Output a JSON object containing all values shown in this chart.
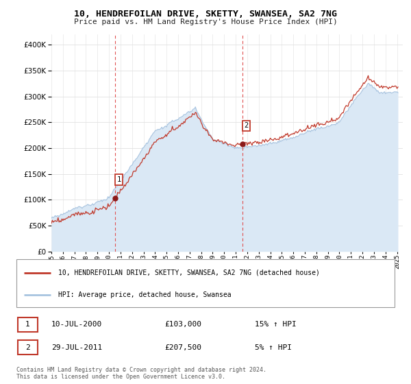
{
  "title": "10, HENDREFOILAN DRIVE, SKETTY, SWANSEA, SA2 7NG",
  "subtitle": "Price paid vs. HM Land Registry's House Price Index (HPI)",
  "legend_line1": "10, HENDREFOILAN DRIVE, SKETTY, SWANSEA, SA2 7NG (detached house)",
  "legend_line2": "HPI: Average price, detached house, Swansea",
  "annotation1_date": "10-JUL-2000",
  "annotation1_price": "£103,000",
  "annotation1_hpi": "15% ↑ HPI",
  "annotation2_date": "29-JUL-2011",
  "annotation2_price": "£207,500",
  "annotation2_hpi": "5% ↑ HPI",
  "footnote": "Contains HM Land Registry data © Crown copyright and database right 2024.\nThis data is licensed under the Open Government Licence v3.0.",
  "sale1_year": 2000.53,
  "sale1_value": 103000,
  "sale2_year": 2011.57,
  "sale2_value": 207500,
  "hpi_line_color": "#a8c4e0",
  "hpi_fill_color": "#dae8f5",
  "price_color": "#c0392b",
  "sale_dot_color": "#8b1a1a",
  "vline_color": "#e05050",
  "background_color": "#ffffff",
  "grid_color": "#e0e0e0",
  "ylim": [
    0,
    420000
  ],
  "xlim_start": 1995,
  "xlim_end": 2025.5
}
